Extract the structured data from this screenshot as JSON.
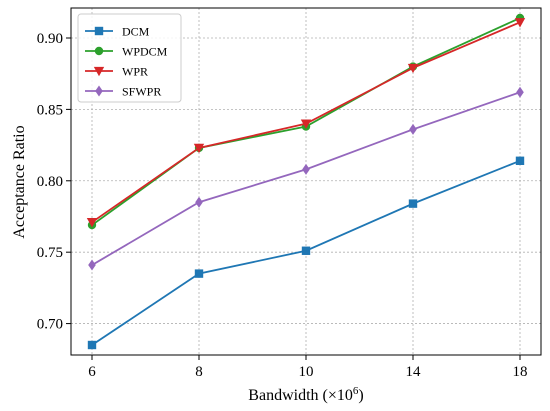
{
  "chart_data": {
    "type": "line",
    "title": "",
    "xlabel": "Bandwidth (×10",
    "xlabel_exponent": "6",
    "xlabel_suffix": ")",
    "ylabel": "Acceptance Ratio",
    "categories": [
      "6",
      "8",
      "10",
      "14",
      "18"
    ],
    "y_ticks": [
      "0.70",
      "0.75",
      "0.80",
      "0.85",
      "0.90"
    ],
    "y_tick_values": [
      0.7,
      0.75,
      0.8,
      0.85,
      0.9
    ],
    "ylim": [
      0.678,
      0.921
    ],
    "grid": true,
    "grid_style": "dotted",
    "legend_position": "top-left",
    "series": [
      {
        "name": "DCM",
        "color": "#1f77b4",
        "marker": "square",
        "values": [
          0.685,
          0.735,
          0.751,
          0.784,
          0.814
        ]
      },
      {
        "name": "WPDCM",
        "color": "#2ca02c",
        "marker": "circle",
        "values": [
          0.769,
          0.823,
          0.838,
          0.88,
          0.914
        ]
      },
      {
        "name": "WPR",
        "color": "#d62728",
        "marker": "triangle-down",
        "values": [
          0.771,
          0.823,
          0.84,
          0.879,
          0.911
        ]
      },
      {
        "name": "SFWPR",
        "color": "#9467bd",
        "marker": "diamond",
        "values": [
          0.741,
          0.785,
          0.808,
          0.836,
          0.862
        ]
      }
    ]
  }
}
